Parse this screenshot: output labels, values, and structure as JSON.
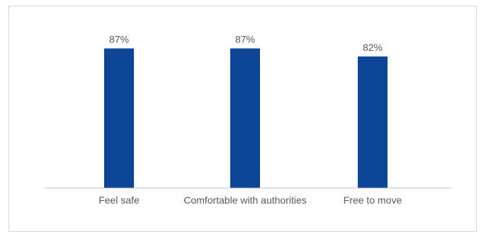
{
  "chart_data": {
    "type": "bar",
    "title": "",
    "xlabel": "",
    "ylabel": "",
    "categories": [
      "Feel safe",
      "Comfortable with authorities",
      "Free to move"
    ],
    "values": [
      87,
      87,
      82
    ],
    "value_labels": [
      "87%",
      "87%",
      "82%"
    ],
    "ylim": [
      0,
      100
    ],
    "grid": false,
    "legend": "none",
    "bar_color": "#0d4597",
    "axis_color": "#bfbfbf",
    "label_color": "#595959"
  }
}
